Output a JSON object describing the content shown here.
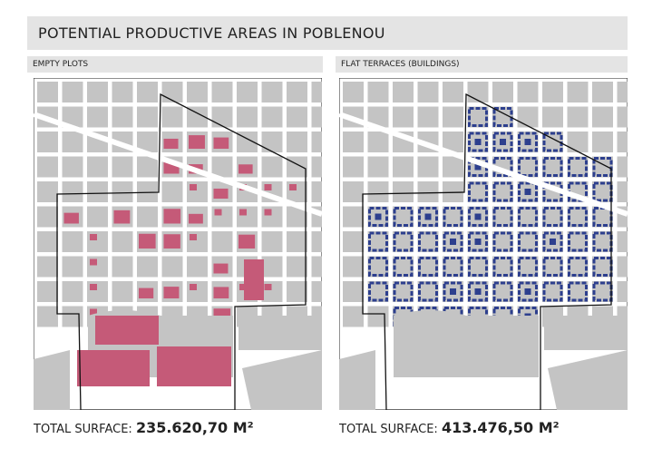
{
  "header": {
    "title": "POTENTIAL PRODUCTIVE AREAS IN POBLENOU"
  },
  "panels": [
    {
      "label": "EMPTY PLOTS",
      "total_label": "TOTAL SURFACE:",
      "total_value": "235.620,70 M²"
    },
    {
      "label": "FLAT TERRACES (BUILDINGS)",
      "total_label": "TOTAL SURFACE:",
      "total_value": "413.476,50 M²"
    }
  ]
}
